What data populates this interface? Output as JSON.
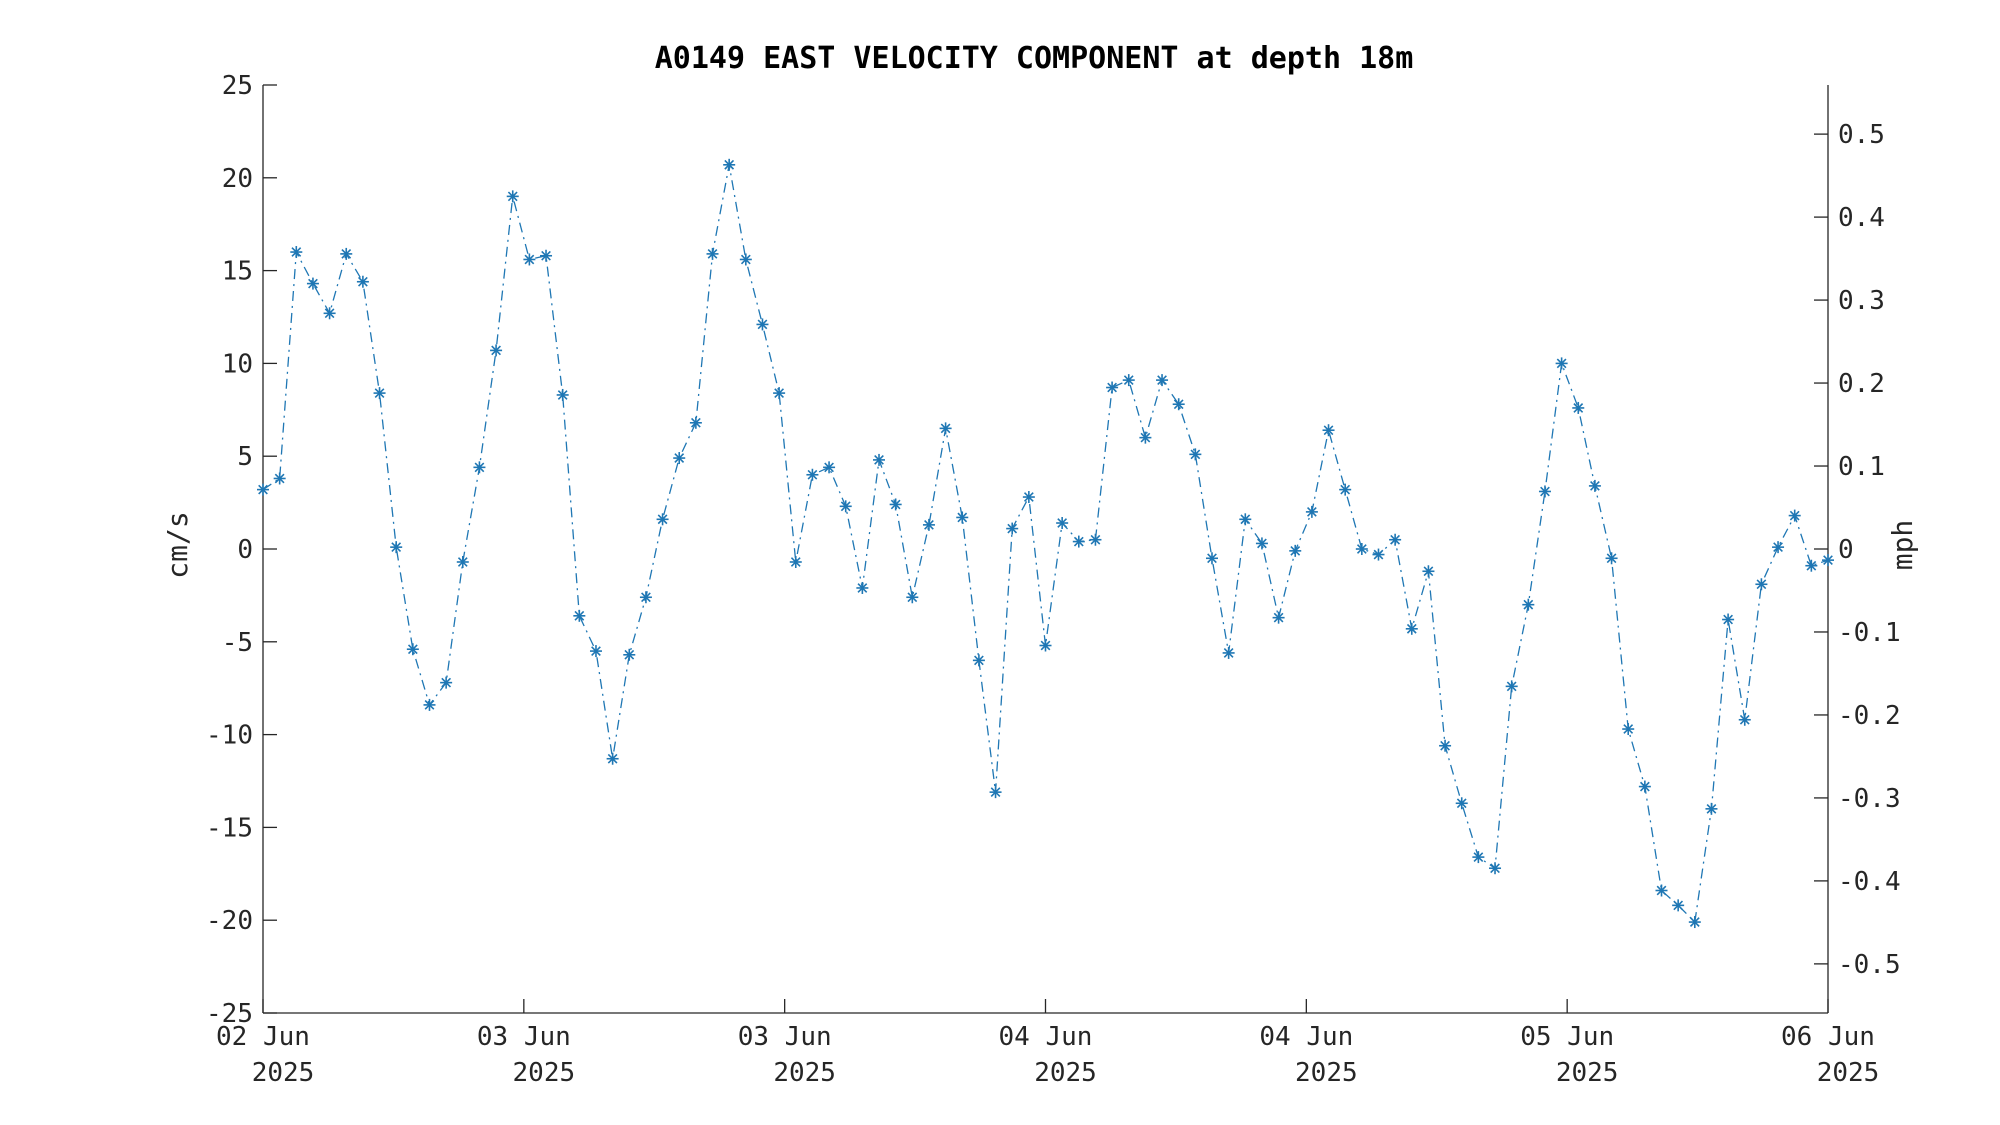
{
  "chart_data": {
    "type": "line",
    "title": "A0149 EAST VELOCITY COMPONENT at depth 18m",
    "ylabel": "cm/s",
    "ylabel_right": "mph",
    "ylim": [
      -25,
      25
    ],
    "ylim_right": [
      -0.5592,
      0.5592
    ],
    "yticks": [
      25,
      20,
      15,
      10,
      5,
      0,
      -5,
      -10,
      -15,
      -20,
      -25
    ],
    "yticks_right": [
      0.5,
      0.4,
      0.3,
      0.2,
      0.1,
      0,
      -0.1,
      -0.2,
      -0.3,
      -0.4,
      -0.5
    ],
    "x_range_days": [
      0,
      6
    ],
    "xticks": [
      {
        "day": 0,
        "line1": "02 Jun",
        "line2": "2025"
      },
      {
        "day": 1,
        "line1": "03 Jun",
        "line2": "2025"
      },
      {
        "day": 2,
        "line1": "03 Jun",
        "line2": "2025"
      },
      {
        "day": 3,
        "line1": "04 Jun",
        "line2": "2025"
      },
      {
        "day": 4,
        "line1": "04 Jun",
        "line2": "2025"
      },
      {
        "day": 5,
        "line1": "05 Jun",
        "line2": "2025"
      },
      {
        "day": 6,
        "line1": "06 Jun",
        "line2": "2025"
      }
    ],
    "grid": false,
    "line_style": "dash-dot",
    "marker": "asterisk",
    "color": "#1f77b4",
    "series": [
      {
        "values": [
          3.2,
          3.8,
          16.0,
          14.3,
          12.7,
          15.9,
          14.4,
          8.4,
          0.1,
          -5.4,
          -8.4,
          -7.2,
          -0.7,
          4.4,
          10.7,
          19.0,
          15.6,
          15.8,
          8.3,
          -3.6,
          -5.5,
          -11.3,
          -5.7,
          -2.6,
          1.6,
          4.9,
          6.8,
          15.9,
          20.7,
          15.6,
          12.1,
          8.4,
          -0.7,
          4.0,
          4.4,
          2.3,
          -2.1,
          4.8,
          2.4,
          -2.6,
          1.3,
          6.5,
          1.7,
          -6.0,
          -13.1,
          1.1,
          2.8,
          -5.2,
          1.4,
          0.4,
          0.5,
          8.7,
          9.1,
          6.0,
          9.1,
          7.8,
          5.1,
          -0.5,
          -5.6,
          1.6,
          0.3,
          -3.7,
          -0.1,
          2.0,
          6.4,
          3.2,
          0.0,
          -0.3,
          0.5,
          -4.3,
          -1.2,
          -10.6,
          -13.7,
          -16.6,
          -17.2,
          -7.4,
          -3.0,
          3.1,
          10.0,
          7.6,
          3.4,
          -0.5,
          -9.7,
          -12.8,
          -18.4,
          -19.2,
          -20.1,
          -14.0,
          -3.8,
          -9.2,
          -1.9,
          0.1,
          1.8,
          -0.9,
          -0.6
        ]
      }
    ]
  }
}
